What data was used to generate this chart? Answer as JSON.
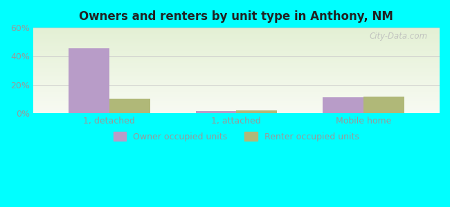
{
  "title": "Owners and renters by unit type in Anthony, NM",
  "categories": [
    "1, detached",
    "1, attached",
    "Mobile home"
  ],
  "owner_values": [
    45.5,
    1.5,
    11.0
  ],
  "renter_values": [
    10.5,
    2.0,
    11.5
  ],
  "owner_color": "#b89cc8",
  "renter_color": "#b0b878",
  "ylim": [
    0,
    60
  ],
  "yticks": [
    0,
    20,
    40,
    60
  ],
  "ytick_labels": [
    "0%",
    "20%",
    "40%",
    "60%"
  ],
  "outer_bg": "#00ffff",
  "bar_width": 0.32,
  "legend_labels": [
    "Owner occupied units",
    "Renter occupied units"
  ],
  "grid_color": "#cccccc",
  "tick_color": "#999999",
  "title_color": "#222222"
}
